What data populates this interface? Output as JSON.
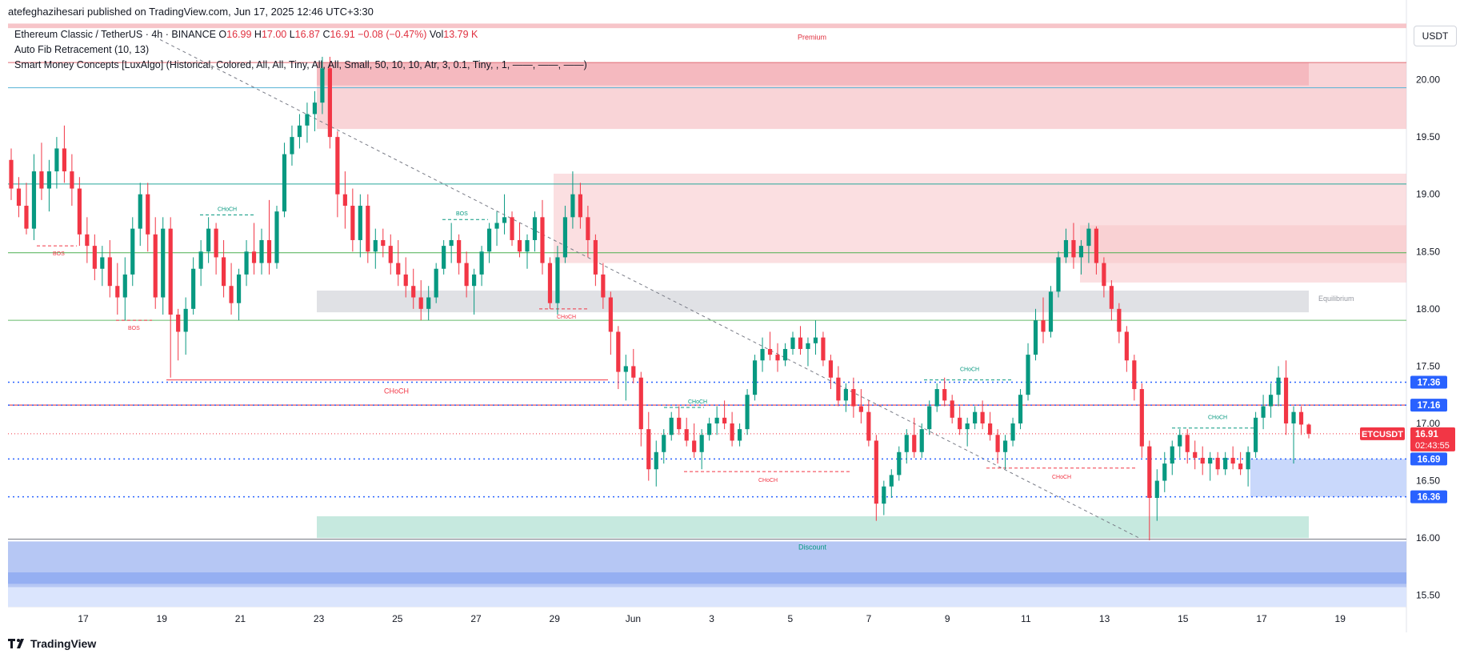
{
  "header": {
    "caption": "atefeghazihesari published on TradingView.com, Jun 17, 2025 12:46 UTC+3:30"
  },
  "legend": {
    "symbol": "Ethereum Classic / TetherUS · 4h · BINANCE",
    "o_label": "O",
    "o_value": "16.99",
    "h_label": "H",
    "h_value": "17.00",
    "l_label": "L",
    "l_value": "16.87",
    "c_label": "C",
    "c_value": "16.91",
    "change": "−0.08 (−0.47%)",
    "vol_label": "Vol",
    "vol_value": "13.79 K",
    "indicator1": "Auto Fib Retracement (10, 13)",
    "indicator2": "Smart Money Concepts [LuxAlgo] (Historical, Colored, All, All, Tiny, All, All, Small, 50, 10, 10, Atr, 3, 0.1, Tiny, , 1, ——, ——, ——)"
  },
  "unit_badge": "USDT",
  "brand": "TradingView",
  "colors": {
    "up": "#089981",
    "down": "#f23645",
    "blue": "#2962ff",
    "price": "#f23645",
    "premium_zone": "#f7c5c9",
    "discount_zone": "#a9bdf2",
    "equilibrium_zone": "#e0e1e5",
    "green_zone": "#c6e9df",
    "trendline": "#787b86"
  },
  "chart_data": {
    "type": "candlestick",
    "timeframe": "4h",
    "ylim": [
      15.4,
      20.5
    ],
    "y_ticks": [
      "20.00",
      "19.50",
      "19.00",
      "18.50",
      "18.00",
      "17.50",
      "17.00",
      "16.50",
      "16.00",
      "15.50"
    ],
    "x_ticks": [
      "17",
      "19",
      "21",
      "23",
      "25",
      "27",
      "29",
      "Jun",
      "3",
      "5",
      "7",
      "9",
      "11",
      "13",
      "15",
      "17",
      "19"
    ],
    "price_labels": [
      {
        "text": "17.36",
        "value": 17.36,
        "color": "#2962ff"
      },
      {
        "text": "17.16",
        "value": 17.16,
        "color": "#2962ff"
      },
      {
        "text": "16.69",
        "value": 16.69,
        "color": "#2962ff"
      },
      {
        "text": "16.36",
        "value": 16.36,
        "color": "#2962ff"
      }
    ],
    "last_price": {
      "symbol": "ETCUSDT",
      "price": "16.91",
      "countdown": "02:43:55",
      "value": 16.91
    },
    "zone_labels": {
      "premium": "Premium",
      "equilibrium": "Equilibrium",
      "discount": "Discount"
    },
    "structure_labels": {
      "choch": "CHoCH",
      "bos": "BOS"
    },
    "candles_ohlc": [
      [
        19.3,
        19.4,
        18.95,
        19.05
      ],
      [
        19.05,
        19.15,
        18.8,
        18.9
      ],
      [
        18.9,
        19.1,
        18.65,
        18.7
      ],
      [
        18.7,
        19.35,
        18.6,
        19.2
      ],
      [
        19.2,
        19.45,
        18.95,
        19.05
      ],
      [
        19.05,
        19.3,
        18.85,
        19.2
      ],
      [
        19.2,
        19.5,
        19.05,
        19.4
      ],
      [
        19.4,
        19.6,
        19.1,
        19.2
      ],
      [
        19.2,
        19.35,
        18.9,
        19.05
      ],
      [
        19.05,
        19.15,
        18.55,
        18.65
      ],
      [
        18.65,
        18.8,
        18.4,
        18.55
      ],
      [
        18.55,
        18.65,
        18.25,
        18.35
      ],
      [
        18.35,
        18.55,
        18.2,
        18.45
      ],
      [
        18.45,
        18.6,
        18.1,
        18.2
      ],
      [
        18.2,
        18.4,
        17.95,
        18.1
      ],
      [
        18.1,
        18.45,
        17.9,
        18.3
      ],
      [
        18.3,
        18.8,
        18.2,
        18.7
      ],
      [
        18.7,
        19.1,
        18.55,
        19.0
      ],
      [
        19.0,
        19.1,
        18.5,
        18.65
      ],
      [
        18.65,
        18.8,
        18.0,
        18.1
      ],
      [
        18.1,
        18.8,
        17.95,
        18.7
      ],
      [
        18.7,
        18.8,
        17.4,
        17.95
      ],
      [
        17.95,
        18.0,
        17.55,
        17.8
      ],
      [
        17.8,
        18.1,
        17.6,
        18.0
      ],
      [
        18.0,
        18.45,
        17.95,
        18.35
      ],
      [
        18.35,
        18.6,
        18.2,
        18.5
      ],
      [
        18.5,
        18.8,
        18.4,
        18.7
      ],
      [
        18.7,
        18.75,
        18.3,
        18.45
      ],
      [
        18.45,
        18.6,
        18.1,
        18.2
      ],
      [
        18.2,
        18.4,
        17.95,
        18.05
      ],
      [
        18.05,
        18.35,
        17.9,
        18.3
      ],
      [
        18.3,
        18.6,
        18.2,
        18.5
      ],
      [
        18.5,
        18.75,
        18.3,
        18.4
      ],
      [
        18.4,
        18.7,
        18.3,
        18.6
      ],
      [
        18.6,
        18.95,
        18.3,
        18.4
      ],
      [
        18.4,
        18.9,
        18.35,
        18.85
      ],
      [
        18.85,
        19.45,
        18.8,
        19.35
      ],
      [
        19.35,
        19.6,
        19.25,
        19.5
      ],
      [
        19.5,
        19.7,
        19.4,
        19.6
      ],
      [
        19.6,
        19.8,
        19.45,
        19.7
      ],
      [
        19.7,
        19.9,
        19.55,
        19.8
      ],
      [
        19.8,
        20.2,
        19.7,
        20.1
      ],
      [
        20.1,
        20.2,
        19.4,
        19.5
      ],
      [
        19.5,
        19.55,
        18.8,
        19.0
      ],
      [
        19.0,
        19.2,
        18.7,
        18.9
      ],
      [
        18.9,
        19.05,
        18.5,
        18.6
      ],
      [
        18.6,
        19.0,
        18.45,
        18.9
      ],
      [
        18.9,
        19.0,
        18.4,
        18.5
      ],
      [
        18.5,
        18.7,
        18.35,
        18.6
      ],
      [
        18.6,
        18.7,
        18.45,
        18.55
      ],
      [
        18.55,
        18.65,
        18.3,
        18.4
      ],
      [
        18.4,
        18.6,
        18.2,
        18.3
      ],
      [
        18.3,
        18.45,
        18.1,
        18.2
      ],
      [
        18.2,
        18.35,
        18.0,
        18.1
      ],
      [
        18.1,
        18.25,
        17.9,
        18.0
      ],
      [
        18.0,
        18.2,
        17.9,
        18.1
      ],
      [
        18.1,
        18.4,
        18.05,
        18.35
      ],
      [
        18.35,
        18.6,
        18.3,
        18.55
      ],
      [
        18.55,
        18.75,
        18.4,
        18.6
      ],
      [
        18.6,
        18.65,
        18.3,
        18.4
      ],
      [
        18.4,
        18.5,
        18.1,
        18.2
      ],
      [
        18.2,
        18.35,
        17.95,
        18.3
      ],
      [
        18.3,
        18.55,
        18.2,
        18.5
      ],
      [
        18.5,
        18.75,
        18.4,
        18.7
      ],
      [
        18.7,
        18.85,
        18.55,
        18.75
      ],
      [
        18.75,
        19.0,
        18.65,
        18.8
      ],
      [
        18.8,
        18.85,
        18.55,
        18.6
      ],
      [
        18.6,
        18.75,
        18.45,
        18.5
      ],
      [
        18.5,
        18.65,
        18.35,
        18.6
      ],
      [
        18.6,
        18.85,
        18.5,
        18.8
      ],
      [
        18.8,
        18.95,
        18.3,
        18.4
      ],
      [
        18.4,
        18.45,
        18.0,
        18.05
      ],
      [
        18.05,
        18.55,
        17.95,
        18.45
      ],
      [
        18.45,
        18.9,
        18.4,
        18.8
      ],
      [
        18.8,
        19.2,
        18.7,
        19.0
      ],
      [
        19.0,
        19.1,
        18.7,
        18.8
      ],
      [
        18.8,
        18.9,
        18.45,
        18.6
      ],
      [
        18.6,
        18.65,
        18.2,
        18.3
      ],
      [
        18.3,
        18.4,
        18.0,
        18.1
      ],
      [
        18.1,
        18.15,
        17.6,
        17.8
      ],
      [
        17.8,
        17.85,
        17.3,
        17.45
      ],
      [
        17.45,
        17.6,
        17.2,
        17.5
      ],
      [
        17.5,
        17.65,
        17.35,
        17.4
      ],
      [
        17.4,
        17.45,
        16.8,
        16.95
      ],
      [
        16.95,
        17.1,
        16.5,
        16.6
      ],
      [
        16.6,
        16.85,
        16.45,
        16.75
      ],
      [
        16.75,
        16.95,
        16.65,
        16.9
      ],
      [
        16.9,
        17.1,
        16.85,
        17.05
      ],
      [
        17.05,
        17.15,
        16.9,
        16.95
      ],
      [
        16.95,
        17.05,
        16.8,
        16.85
      ],
      [
        16.85,
        17.0,
        16.7,
        16.75
      ],
      [
        16.75,
        16.95,
        16.6,
        16.9
      ],
      [
        16.9,
        17.05,
        16.85,
        17.0
      ],
      [
        17.0,
        17.15,
        16.9,
        17.05
      ],
      [
        17.05,
        17.2,
        16.95,
        17.0
      ],
      [
        17.0,
        17.1,
        16.8,
        16.85
      ],
      [
        16.85,
        17.0,
        16.8,
        16.95
      ],
      [
        16.95,
        17.3,
        16.9,
        17.25
      ],
      [
        17.25,
        17.6,
        17.2,
        17.55
      ],
      [
        17.55,
        17.75,
        17.45,
        17.65
      ],
      [
        17.65,
        17.8,
        17.55,
        17.6
      ],
      [
        17.6,
        17.7,
        17.45,
        17.55
      ],
      [
        17.55,
        17.7,
        17.5,
        17.65
      ],
      [
        17.65,
        17.8,
        17.6,
        17.75
      ],
      [
        17.75,
        17.85,
        17.6,
        17.65
      ],
      [
        17.65,
        17.75,
        17.5,
        17.7
      ],
      [
        17.7,
        17.9,
        17.6,
        17.75
      ],
      [
        17.75,
        17.8,
        17.5,
        17.55
      ],
      [
        17.55,
        17.6,
        17.3,
        17.4
      ],
      [
        17.4,
        17.5,
        17.15,
        17.2
      ],
      [
        17.2,
        17.35,
        17.1,
        17.3
      ],
      [
        17.3,
        17.4,
        17.05,
        17.15
      ],
      [
        17.15,
        17.3,
        17.0,
        17.1
      ],
      [
        17.1,
        17.2,
        16.8,
        16.85
      ],
      [
        16.85,
        16.9,
        16.15,
        16.3
      ],
      [
        16.3,
        16.5,
        16.2,
        16.45
      ],
      [
        16.45,
        16.6,
        16.35,
        16.55
      ],
      [
        16.55,
        16.8,
        16.5,
        16.75
      ],
      [
        16.75,
        16.95,
        16.65,
        16.9
      ],
      [
        16.9,
        17.05,
        16.7,
        16.75
      ],
      [
        16.75,
        17.0,
        16.7,
        16.95
      ],
      [
        16.95,
        17.2,
        16.9,
        17.15
      ],
      [
        17.15,
        17.35,
        17.1,
        17.3
      ],
      [
        17.3,
        17.4,
        17.15,
        17.2
      ],
      [
        17.2,
        17.25,
        17.0,
        17.05
      ],
      [
        17.05,
        17.15,
        16.9,
        16.95
      ],
      [
        16.95,
        17.05,
        16.8,
        17.0
      ],
      [
        17.0,
        17.15,
        16.95,
        17.1
      ],
      [
        17.1,
        17.2,
        16.95,
        17.0
      ],
      [
        17.0,
        17.1,
        16.85,
        16.9
      ],
      [
        16.9,
        16.95,
        16.65,
        16.75
      ],
      [
        16.75,
        16.9,
        16.6,
        16.85
      ],
      [
        16.85,
        17.05,
        16.8,
        17.0
      ],
      [
        17.0,
        17.3,
        16.95,
        17.25
      ],
      [
        17.25,
        17.7,
        17.2,
        17.6
      ],
      [
        17.6,
        18.0,
        17.55,
        17.9
      ],
      [
        17.9,
        18.1,
        17.7,
        17.8
      ],
      [
        17.8,
        18.2,
        17.75,
        18.15
      ],
      [
        18.15,
        18.5,
        18.1,
        18.45
      ],
      [
        18.45,
        18.7,
        18.4,
        18.6
      ],
      [
        18.6,
        18.75,
        18.35,
        18.45
      ],
      [
        18.45,
        18.6,
        18.3,
        18.55
      ],
      [
        18.55,
        18.75,
        18.4,
        18.7
      ],
      [
        18.7,
        18.72,
        18.3,
        18.4
      ],
      [
        18.4,
        18.45,
        18.1,
        18.2
      ],
      [
        18.2,
        18.25,
        17.9,
        18.0
      ],
      [
        18.0,
        18.05,
        17.7,
        17.8
      ],
      [
        17.8,
        17.85,
        17.45,
        17.55
      ],
      [
        17.55,
        17.6,
        17.2,
        17.3
      ],
      [
        17.3,
        17.35,
        16.7,
        16.8
      ],
      [
        16.8,
        16.85,
        15.98,
        16.35
      ],
      [
        16.35,
        16.6,
        16.15,
        16.5
      ],
      [
        16.5,
        16.75,
        16.4,
        16.65
      ],
      [
        16.65,
        16.85,
        16.55,
        16.8
      ],
      [
        16.8,
        16.95,
        16.7,
        16.9
      ],
      [
        16.9,
        16.95,
        16.65,
        16.75
      ],
      [
        16.75,
        16.85,
        16.6,
        16.7
      ],
      [
        16.7,
        16.8,
        16.55,
        16.65
      ],
      [
        16.65,
        16.75,
        16.5,
        16.7
      ],
      [
        16.7,
        16.75,
        16.55,
        16.6
      ],
      [
        16.6,
        16.75,
        16.55,
        16.7
      ],
      [
        16.7,
        16.8,
        16.6,
        16.65
      ],
      [
        16.65,
        16.75,
        16.55,
        16.6
      ],
      [
        16.6,
        16.8,
        16.45,
        16.75
      ],
      [
        16.75,
        17.1,
        16.7,
        17.05
      ],
      [
        17.05,
        17.25,
        16.95,
        17.15
      ],
      [
        17.15,
        17.35,
        17.05,
        17.25
      ],
      [
        17.25,
        17.5,
        17.15,
        17.4
      ],
      [
        17.4,
        17.55,
        16.9,
        17.0
      ],
      [
        17.0,
        17.15,
        16.65,
        17.1
      ],
      [
        17.1,
        17.15,
        16.9,
        16.99
      ],
      [
        16.99,
        17.0,
        16.87,
        16.91
      ]
    ]
  }
}
